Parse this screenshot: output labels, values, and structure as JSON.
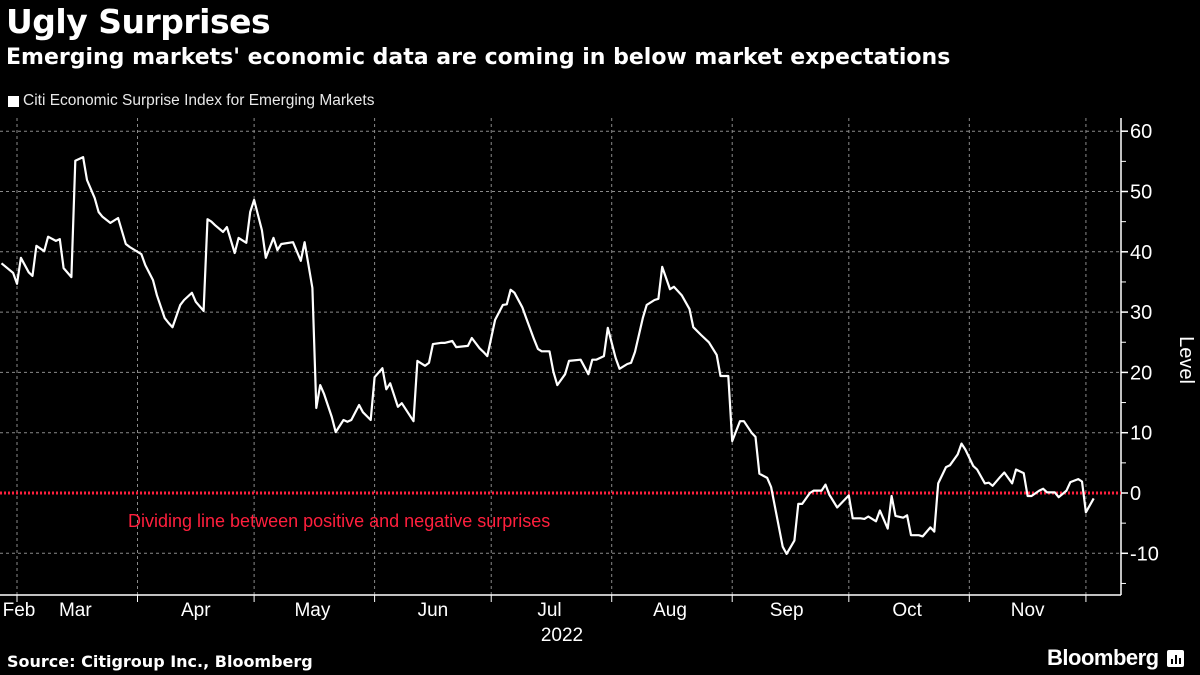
{
  "header": {
    "title": "Ugly Surprises",
    "subtitle": "Emerging markets' economic data are coming in below market expectations"
  },
  "footer": {
    "source": "Source: Citigroup Inc., Bloomberg",
    "brand": "Bloomberg"
  },
  "colors": {
    "background": "#000000",
    "line": "#ffffff",
    "zero_line": "#ff1f3d",
    "grid": "#777777"
  },
  "chart_data": {
    "type": "line",
    "title": "Ugly Surprises",
    "subtitle": "Emerging markets' economic data are coming in below market expectations",
    "legend": [
      "Citi Economic Surprise Index for Emerging Markets"
    ],
    "legend_position": "top-left",
    "xlabel": "2022",
    "ylabel": "Level",
    "x_unit": "day of year 2022",
    "xlim": [
      56,
      339
    ],
    "ylim": [
      -17,
      62
    ],
    "yticks": [
      60,
      50,
      40,
      30,
      20,
      10,
      0,
      -10
    ],
    "ytick_labels": [
      "60",
      "50",
      "40",
      "30",
      "20",
      "10",
      "0",
      "-10"
    ],
    "xtick_month_starts": [
      60,
      91,
      121,
      152,
      182,
      213,
      244,
      274,
      305,
      335
    ],
    "xtick_labels": [
      "Feb",
      "Mar",
      "Apr",
      "May",
      "Jun",
      "Jul",
      "Aug",
      "Sep",
      "Oct",
      "Nov"
    ],
    "xtick_label_positions": [
      40,
      75,
      106,
      136,
      167,
      197,
      228,
      258,
      289,
      320
    ],
    "grid": true,
    "annotation": {
      "text": "Dividing line between positive and negative surprises",
      "y": 0
    },
    "series": [
      {
        "name": "Citi Economic Surprise Index for Emerging Markets",
        "x": [
          56,
          59,
          60,
          61,
          63,
          64,
          65,
          67,
          68,
          70,
          71,
          72,
          74,
          75,
          77,
          78,
          80,
          81,
          82,
          84,
          86,
          88,
          89,
          92,
          93,
          95,
          96,
          98,
          99,
          100,
          102,
          103,
          105,
          106,
          108,
          109,
          110,
          111,
          113,
          114,
          116,
          117,
          119,
          120,
          121,
          123,
          124,
          126,
          127,
          128,
          131,
          133,
          134,
          136,
          137,
          138,
          139,
          141,
          142,
          144,
          145,
          146,
          148,
          149,
          151,
          152,
          154,
          155,
          156,
          158,
          159,
          162,
          163,
          165,
          166,
          167,
          169,
          170,
          172,
          173,
          176,
          177,
          179,
          180,
          181,
          183,
          185,
          186,
          187,
          188,
          190,
          191,
          193,
          194,
          195,
          197,
          198,
          199,
          201,
          202,
          205,
          207,
          208,
          209,
          211,
          212,
          214,
          215,
          217,
          218,
          219,
          221,
          222,
          224,
          225,
          226,
          228,
          229,
          231,
          233,
          234,
          236,
          238,
          240,
          241,
          243,
          244,
          246,
          247,
          249,
          250,
          251,
          253,
          254,
          257,
          258,
          260,
          261,
          262,
          264,
          265,
          267,
          268,
          269,
          271,
          274,
          275,
          277,
          278,
          279,
          281,
          282,
          284,
          285,
          286,
          288,
          289,
          290,
          292,
          293,
          295,
          296,
          297,
          299,
          300,
          302,
          303,
          304,
          306,
          307,
          309,
          310,
          311,
          313,
          314,
          316,
          317,
          319,
          320,
          321,
          323,
          324,
          325,
          327,
          328,
          330,
          331,
          333,
          334,
          335,
          337
        ],
        "y": [
          38.1,
          36.5,
          34.7,
          39.0,
          36.6,
          36.0,
          41.0,
          40.1,
          42.5,
          41.8,
          42.1,
          37.3,
          35.8,
          55.1,
          55.7,
          51.9,
          48.9,
          46.6,
          45.8,
          44.8,
          45.6,
          41.3,
          40.8,
          39.6,
          37.8,
          35.3,
          32.8,
          29.0,
          28.2,
          27.5,
          31.2,
          32.0,
          33.2,
          31.7,
          30.2,
          45.4,
          45.0,
          44.4,
          43.3,
          44.1,
          39.8,
          42.3,
          41.5,
          46.6,
          48.6,
          43.6,
          39.0,
          42.3,
          40.3,
          41.3,
          41.6,
          38.5,
          41.6,
          34.0,
          14.1,
          17.9,
          16.4,
          12.6,
          10.1,
          12.1,
          11.8,
          12.1,
          14.6,
          13.4,
          12.1,
          19.2,
          20.7,
          17.2,
          18.2,
          14.3,
          14.9,
          11.9,
          21.9,
          21.1,
          21.6,
          24.7,
          24.9,
          24.9,
          25.2,
          24.2,
          24.4,
          25.7,
          24.0,
          23.4,
          22.7,
          28.7,
          31.2,
          31.3,
          33.7,
          33.2,
          30.8,
          29.0,
          25.5,
          23.9,
          23.5,
          23.5,
          20.1,
          17.9,
          19.7,
          21.9,
          22.1,
          19.7,
          22.1,
          22.1,
          22.7,
          27.4,
          22.4,
          20.6,
          21.4,
          21.6,
          23.4,
          29.0,
          31.2,
          32.0,
          32.2,
          37.5,
          33.8,
          34.2,
          32.8,
          30.5,
          27.5,
          26.2,
          25.0,
          22.9,
          19.4,
          19.4,
          8.6,
          11.9,
          11.9,
          10.0,
          9.3,
          3.2,
          2.5,
          1.0,
          -8.9,
          -10.1,
          -7.9,
          -1.8,
          -1.8,
          0.0,
          0.4,
          0.4,
          1.4,
          -0.3,
          -2.4,
          -0.4,
          -4.2,
          -4.2,
          -4.3,
          -3.9,
          -4.7,
          -2.9,
          -5.9,
          -0.5,
          -3.8,
          -4.1,
          -3.7,
          -7.0,
          -7.0,
          -7.2,
          -5.7,
          -6.4,
          1.6,
          4.3,
          4.6,
          6.4,
          8.2,
          7.2,
          4.5,
          3.9,
          1.6,
          1.7,
          1.2,
          2.7,
          3.4,
          1.6,
          3.9,
          3.3,
          -0.5,
          -0.5,
          0.4,
          0.7,
          0.1,
          0.1,
          -0.7,
          0.4,
          1.8,
          2.3,
          1.9,
          -3.2,
          -0.9
        ]
      }
    ]
  }
}
